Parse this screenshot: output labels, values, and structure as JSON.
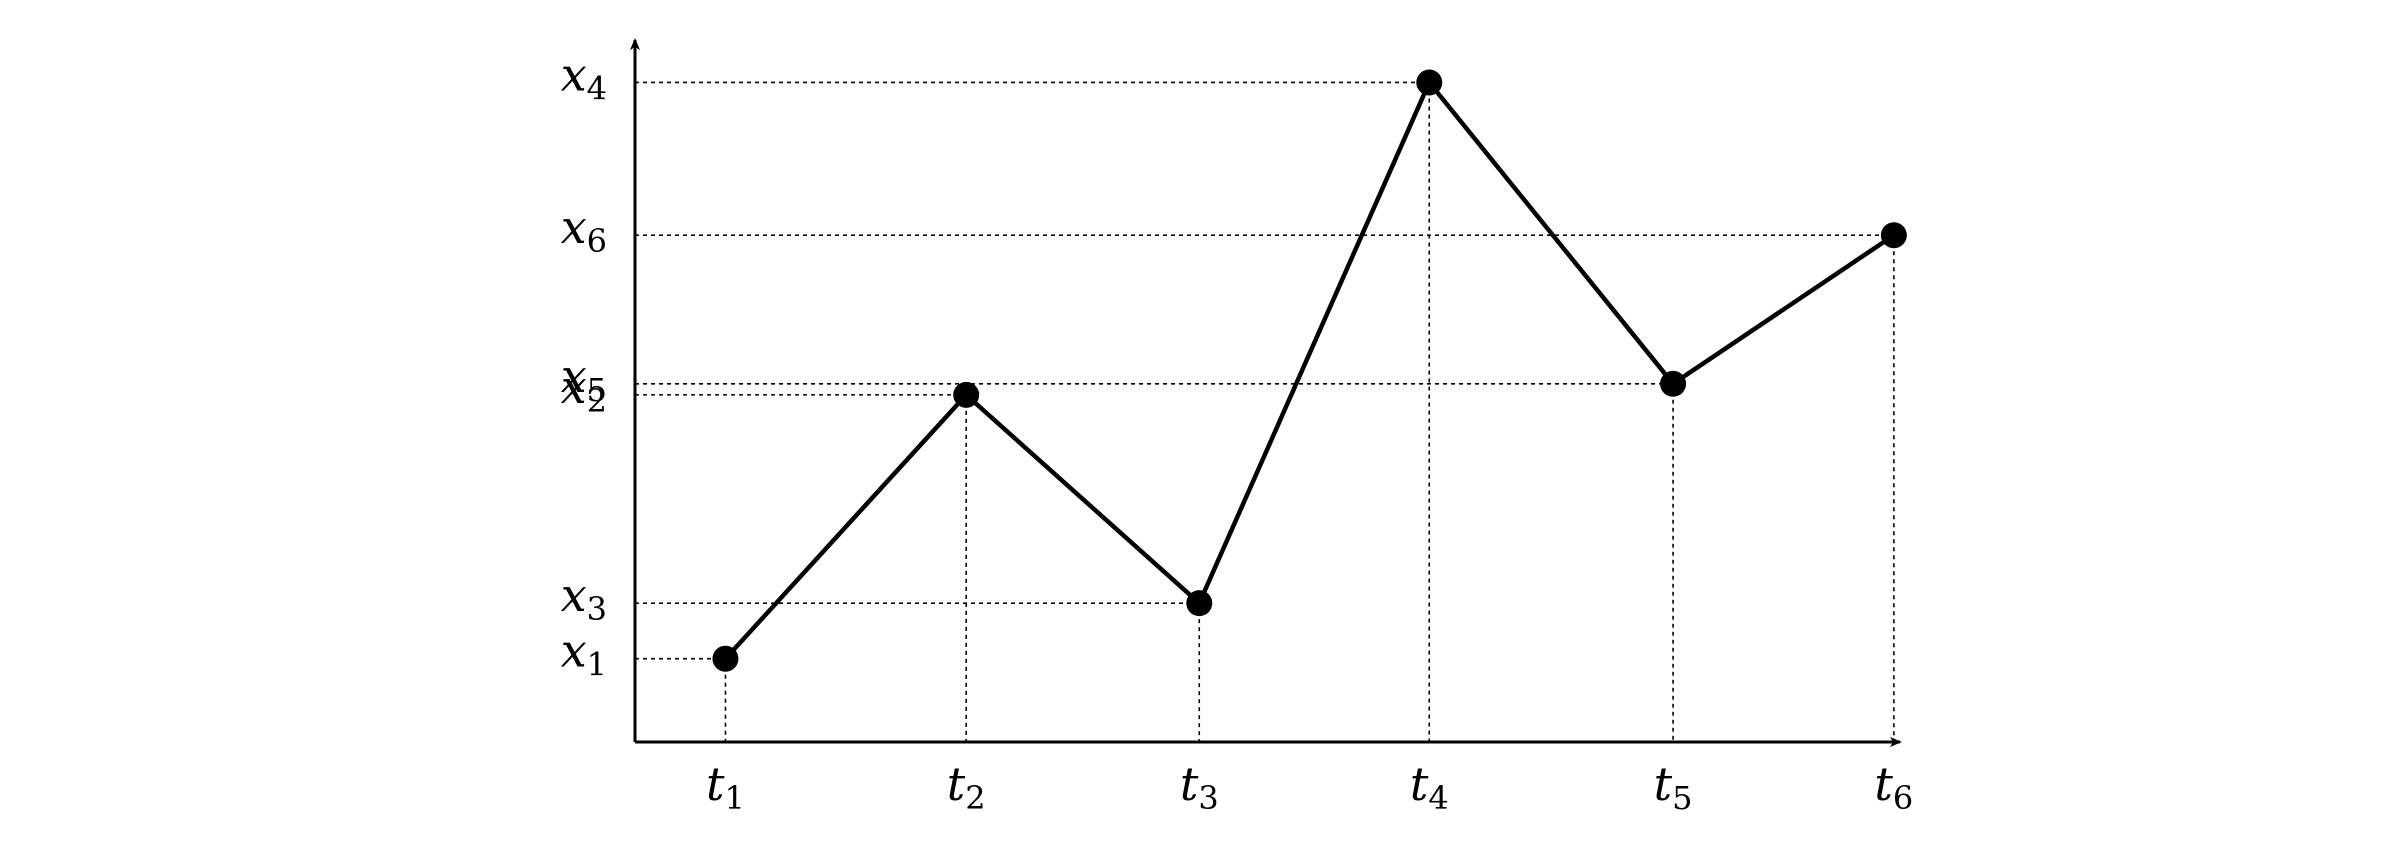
{
  "chart_data": {
    "type": "line",
    "title": "",
    "xlabel": "",
    "ylabel": "",
    "grid": false,
    "legend": "none",
    "guide_lines": "dashed drop lines from each point to both axes",
    "x_ticks": [
      {
        "base": "t",
        "sub": "1"
      },
      {
        "base": "t",
        "sub": "2"
      },
      {
        "base": "t",
        "sub": "3"
      },
      {
        "base": "t",
        "sub": "4"
      },
      {
        "base": "t",
        "sub": "5"
      },
      {
        "base": "t",
        "sub": "6"
      }
    ],
    "y_ticks": [
      {
        "base": "x",
        "sub": "1"
      },
      {
        "base": "x",
        "sub": "2"
      },
      {
        "base": "x",
        "sub": "3"
      },
      {
        "base": "x",
        "sub": "4"
      },
      {
        "base": "x",
        "sub": "5"
      },
      {
        "base": "x",
        "sub": "6"
      }
    ],
    "points": [
      {
        "t": 0.59,
        "x": 0.6
      },
      {
        "t": 2.16,
        "x": 2.5
      },
      {
        "t": 3.68,
        "x": 1.0
      },
      {
        "t": 5.18,
        "x": 4.75
      },
      {
        "t": 6.77,
        "x": 2.58
      },
      {
        "t": 8.21,
        "x": 3.65
      }
    ],
    "y_levels": [
      0.6,
      2.5,
      1.0,
      4.75,
      2.58,
      3.65
    ],
    "xlim": [
      0,
      9
    ],
    "ylim": [
      0,
      5.2
    ],
    "colors": {
      "line": "#000000",
      "marker": "#000000",
      "guide": "#000000"
    }
  }
}
